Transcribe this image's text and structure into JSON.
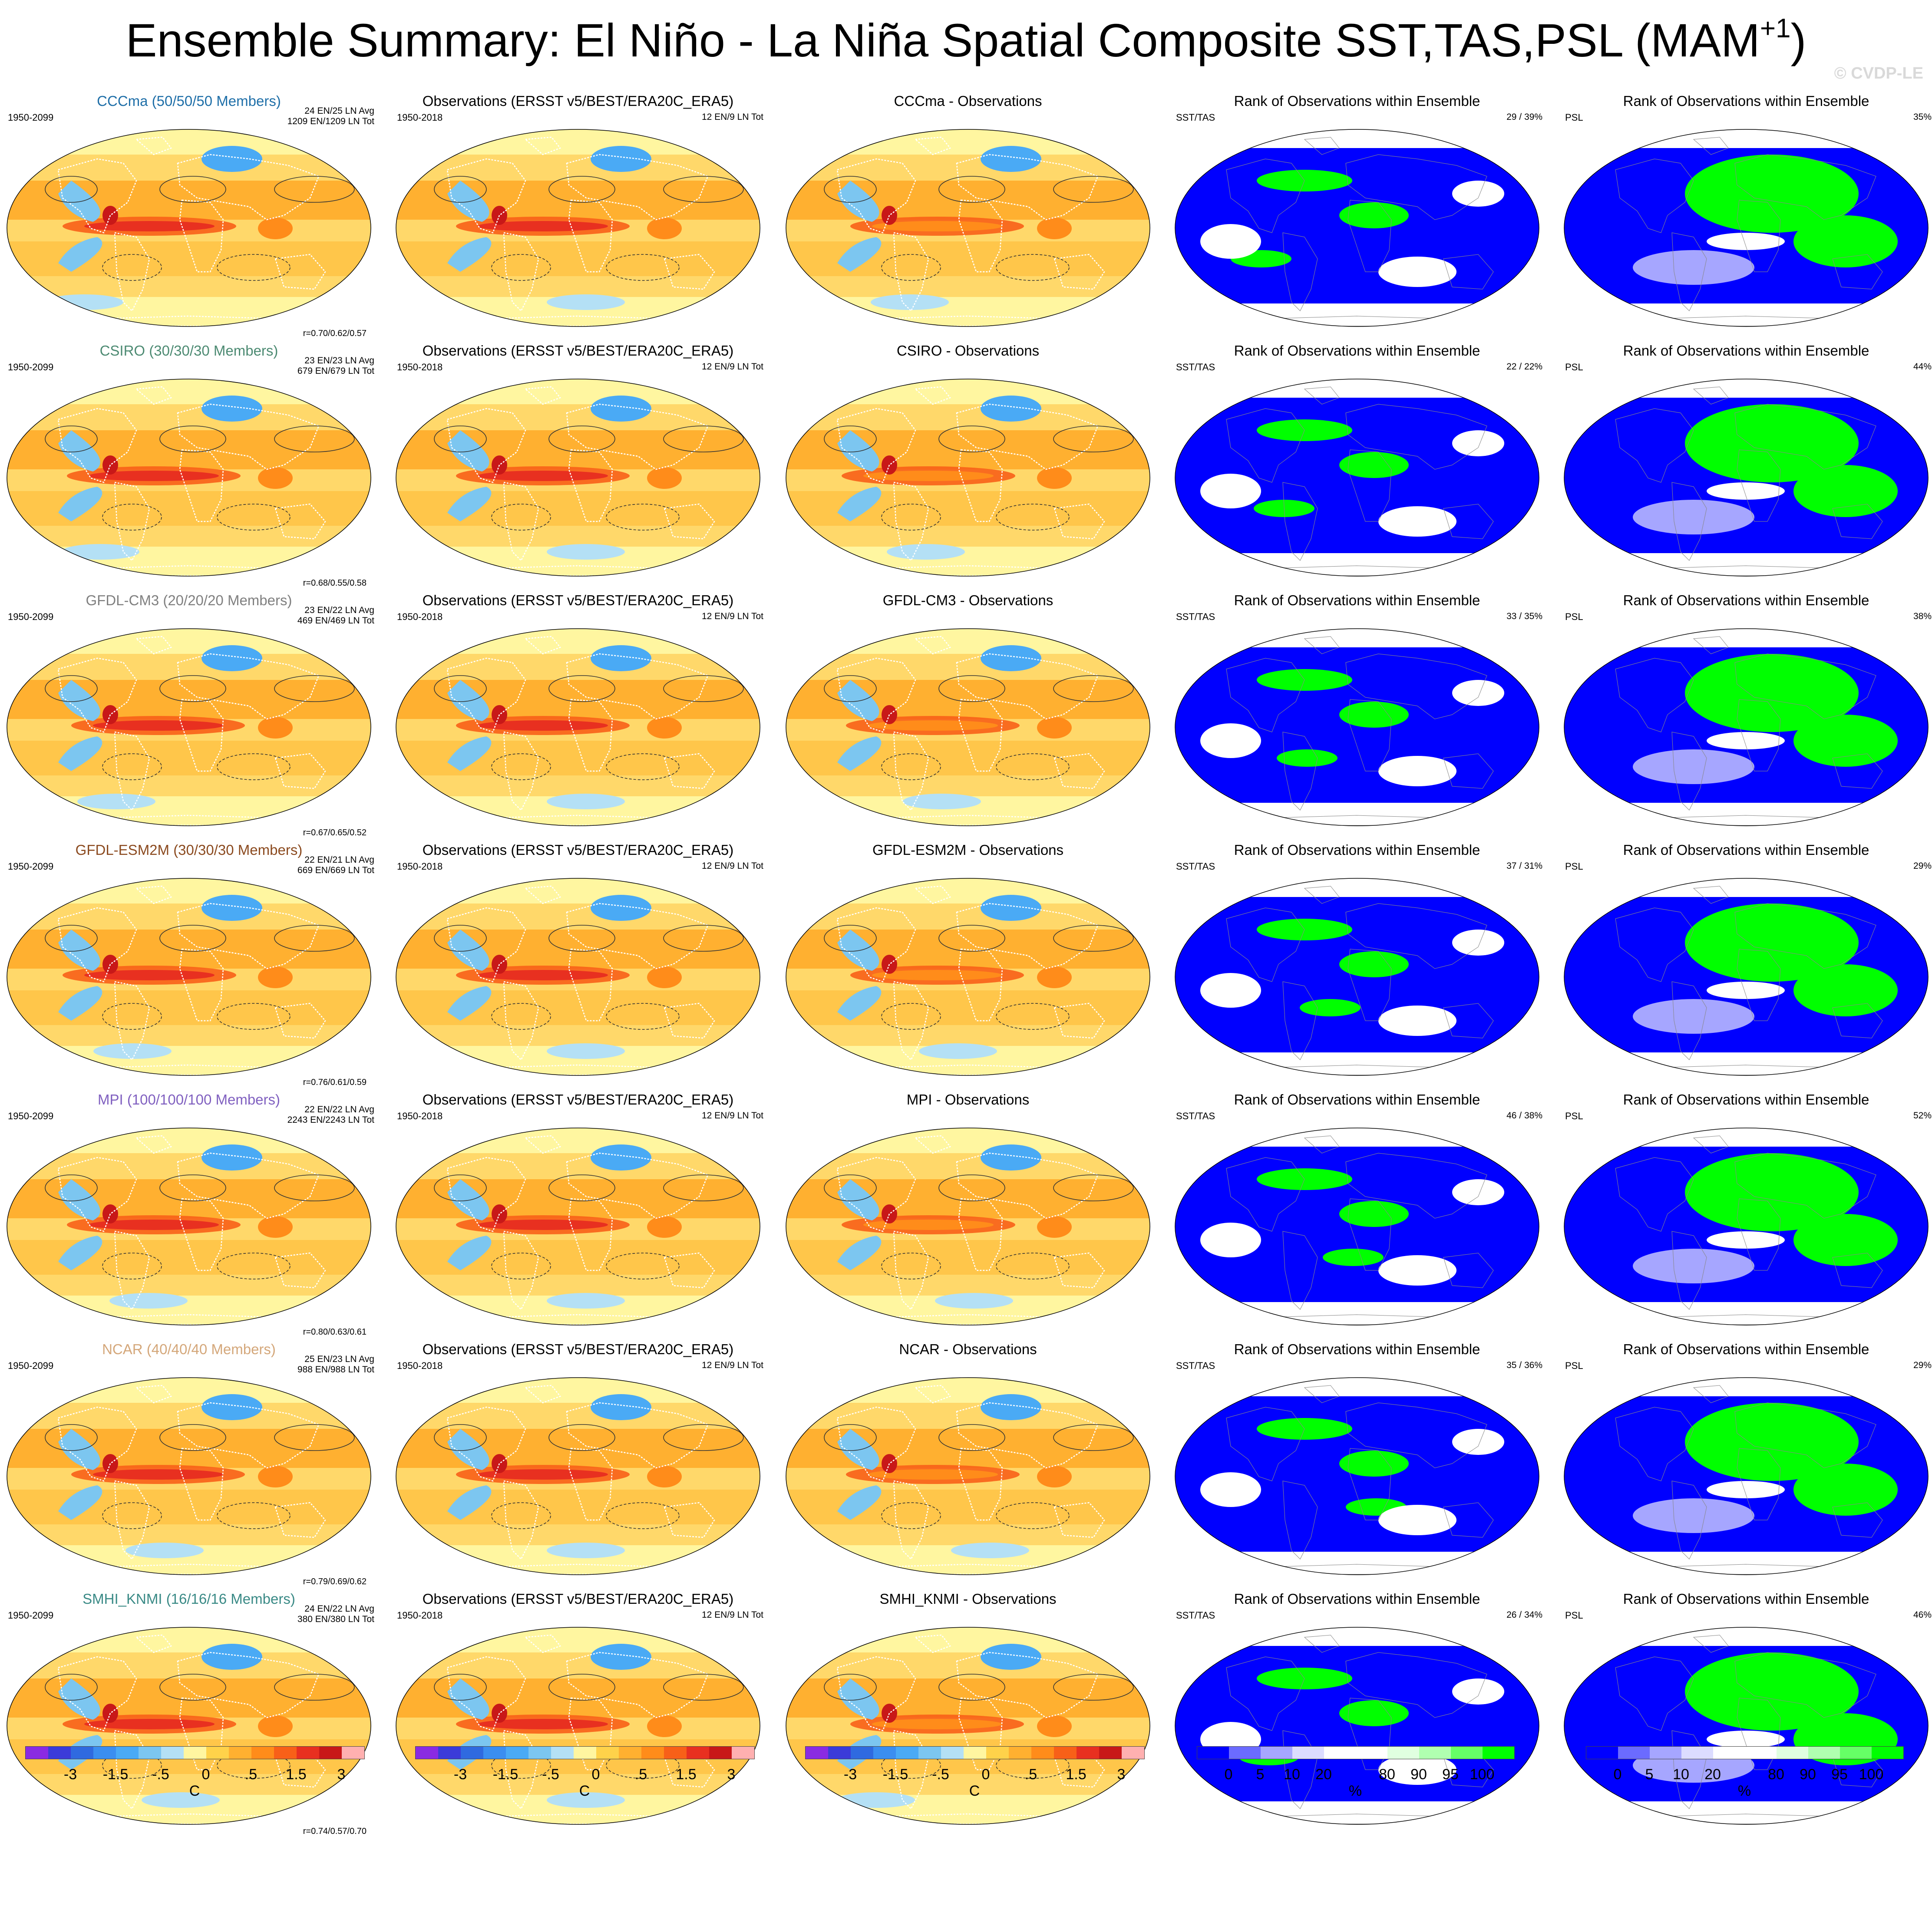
{
  "header": {
    "title": "Ensemble Summary: El Niño - La Niña Spatial Composite SST,TAS,PSL (MAM",
    "title_sup": "+1",
    "title_close": ")",
    "watermark": "© CVDP-LE"
  },
  "chart_data": {
    "type": "heatmap",
    "columns": [
      "model",
      "observations",
      "difference",
      "rank_sst_tas",
      "rank_psl"
    ],
    "rows": [
      {
        "model": "CCCma",
        "member_label": "CCCma (50/50/50 Members)",
        "model_color": "#1f6fa8",
        "model_period": "1950-2099",
        "model_counts_1": "24 EN/25 LN Avg",
        "model_counts_2": "1209 EN/1209 LN Tot",
        "pattern_corr": "r=0.70/0.62/0.57",
        "obs_title": "Observations (ERSST v5/BEST/ERA20C_ERA5)",
        "obs_period": "1950-2018",
        "obs_counts": "12 EN/9 LN Tot",
        "diff_title": "CCCma - Observations",
        "rank_title": "Rank of Observations within Ensemble",
        "rank_sst_label": "SST/TAS",
        "rank_sst_pct": "29 /  39%",
        "rank_psl_label": "PSL",
        "rank_psl_pct": "35%"
      },
      {
        "model": "CSIRO",
        "member_label": "CSIRO (30/30/30 Members)",
        "model_color": "#4c8a72",
        "model_period": "1950-2099",
        "model_counts_1": "23 EN/23 LN Avg",
        "model_counts_2": "679 EN/679 LN Tot",
        "pattern_corr": "r=0.68/0.55/0.58",
        "obs_title": "Observations (ERSST v5/BEST/ERA20C_ERA5)",
        "obs_period": "1950-2018",
        "obs_counts": "12 EN/9 LN Tot",
        "diff_title": "CSIRO - Observations",
        "rank_title": "Rank of Observations within Ensemble",
        "rank_sst_label": "SST/TAS",
        "rank_sst_pct": "22 /  22%",
        "rank_psl_label": "PSL",
        "rank_psl_pct": "44%"
      },
      {
        "model": "GFDL-CM3",
        "member_label": "GFDL-CM3 (20/20/20 Members)",
        "model_color": "#808080",
        "model_period": "1950-2099",
        "model_counts_1": "23 EN/22 LN Avg",
        "model_counts_2": "469 EN/469 LN Tot",
        "pattern_corr": "r=0.67/0.65/0.52",
        "obs_title": "Observations (ERSST v5/BEST/ERA20C_ERA5)",
        "obs_period": "1950-2018",
        "obs_counts": "12 EN/9 LN Tot",
        "diff_title": "GFDL-CM3 - Observations",
        "rank_title": "Rank of Observations within Ensemble",
        "rank_sst_label": "SST/TAS",
        "rank_sst_pct": "33 /  35%",
        "rank_psl_label": "PSL",
        "rank_psl_pct": "38%"
      },
      {
        "model": "GFDL-ESM2M",
        "member_label": "GFDL-ESM2M (30/30/30 Members)",
        "model_color": "#8b4a1f",
        "model_period": "1950-2099",
        "model_counts_1": "22 EN/21 LN Avg",
        "model_counts_2": "669 EN/669 LN Tot",
        "pattern_corr": "r=0.76/0.61/0.59",
        "obs_title": "Observations (ERSST v5/BEST/ERA20C_ERA5)",
        "obs_period": "1950-2018",
        "obs_counts": "12 EN/9 LN Tot",
        "diff_title": "GFDL-ESM2M - Observations",
        "rank_title": "Rank of Observations within Ensemble",
        "rank_sst_label": "SST/TAS",
        "rank_sst_pct": "37 /  31%",
        "rank_psl_label": "PSL",
        "rank_psl_pct": "29%"
      },
      {
        "model": "MPI",
        "member_label": "MPI (100/100/100 Members)",
        "model_color": "#8060c0",
        "model_period": "1950-2099",
        "model_counts_1": "22 EN/22 LN Avg",
        "model_counts_2": "2243 EN/2243 LN Tot",
        "pattern_corr": "r=0.80/0.63/0.61",
        "obs_title": "Observations (ERSST v5/BEST/ERA20C_ERA5)",
        "obs_period": "1950-2018",
        "obs_counts": "12 EN/9 LN Tot",
        "diff_title": "MPI - Observations",
        "rank_title": "Rank of Observations within Ensemble",
        "rank_sst_label": "SST/TAS",
        "rank_sst_pct": "46 /  38%",
        "rank_psl_label": "PSL",
        "rank_psl_pct": "52%"
      },
      {
        "model": "NCAR",
        "member_label": "NCAR (40/40/40 Members)",
        "model_color": "#d4a77a",
        "model_period": "1950-2099",
        "model_counts_1": "25 EN/23 LN Avg",
        "model_counts_2": "988 EN/988 LN Tot",
        "pattern_corr": "r=0.79/0.69/0.62",
        "obs_title": "Observations (ERSST v5/BEST/ERA20C_ERA5)",
        "obs_period": "1950-2018",
        "obs_counts": "12 EN/9 LN Tot",
        "diff_title": "NCAR - Observations",
        "rank_title": "Rank of Observations within Ensemble",
        "rank_sst_label": "SST/TAS",
        "rank_sst_pct": "35 /  36%",
        "rank_psl_label": "PSL",
        "rank_psl_pct": "29%"
      },
      {
        "model": "SMHI_KNMI",
        "member_label": "SMHI_KNMI (16/16/16 Members)",
        "model_color": "#3a8a86",
        "model_period": "1950-2099",
        "model_counts_1": "24 EN/22 LN Avg",
        "model_counts_2": "380 EN/380 LN Tot",
        "pattern_corr": "r=0.74/0.57/0.70",
        "obs_title": "Observations (ERSST v5/BEST/ERA20C_ERA5)",
        "obs_period": "1950-2018",
        "obs_counts": "12 EN/9 LN Tot",
        "diff_title": "SMHI_KNMI - Observations",
        "rank_title": "Rank of Observations within Ensemble",
        "rank_sst_label": "SST/TAS",
        "rank_sst_pct": "26 /  34%",
        "rank_psl_label": "PSL",
        "rank_psl_pct": "46%"
      }
    ],
    "anomaly_colorbar": {
      "colors": [
        "#8a2be2",
        "#3b3bd9",
        "#2f6ae0",
        "#3b8ef0",
        "#4aaaf5",
        "#7cc6f0",
        "#b4e0f5",
        "#fff6a0",
        "#ffd24a",
        "#ffb030",
        "#ff8c1a",
        "#f86018",
        "#e83020",
        "#c81818",
        "#ffb0b0"
      ],
      "ticks": [
        "-3",
        "-1.5",
        "-.5",
        "0",
        ".5",
        "1.5",
        "3"
      ],
      "unit": "C"
    },
    "rank_colorbar": {
      "colors": [
        "#0000ff",
        "#6b6bff",
        "#a6a6ff",
        "#dcdcff",
        "#ffffff",
        "#ffffff",
        "#e0ffe0",
        "#b0ffb0",
        "#66ff66",
        "#00ff00"
      ],
      "ticks": [
        "0",
        "5",
        "10",
        "20",
        "80",
        "90",
        "95",
        "100"
      ],
      "unit": "%"
    }
  }
}
